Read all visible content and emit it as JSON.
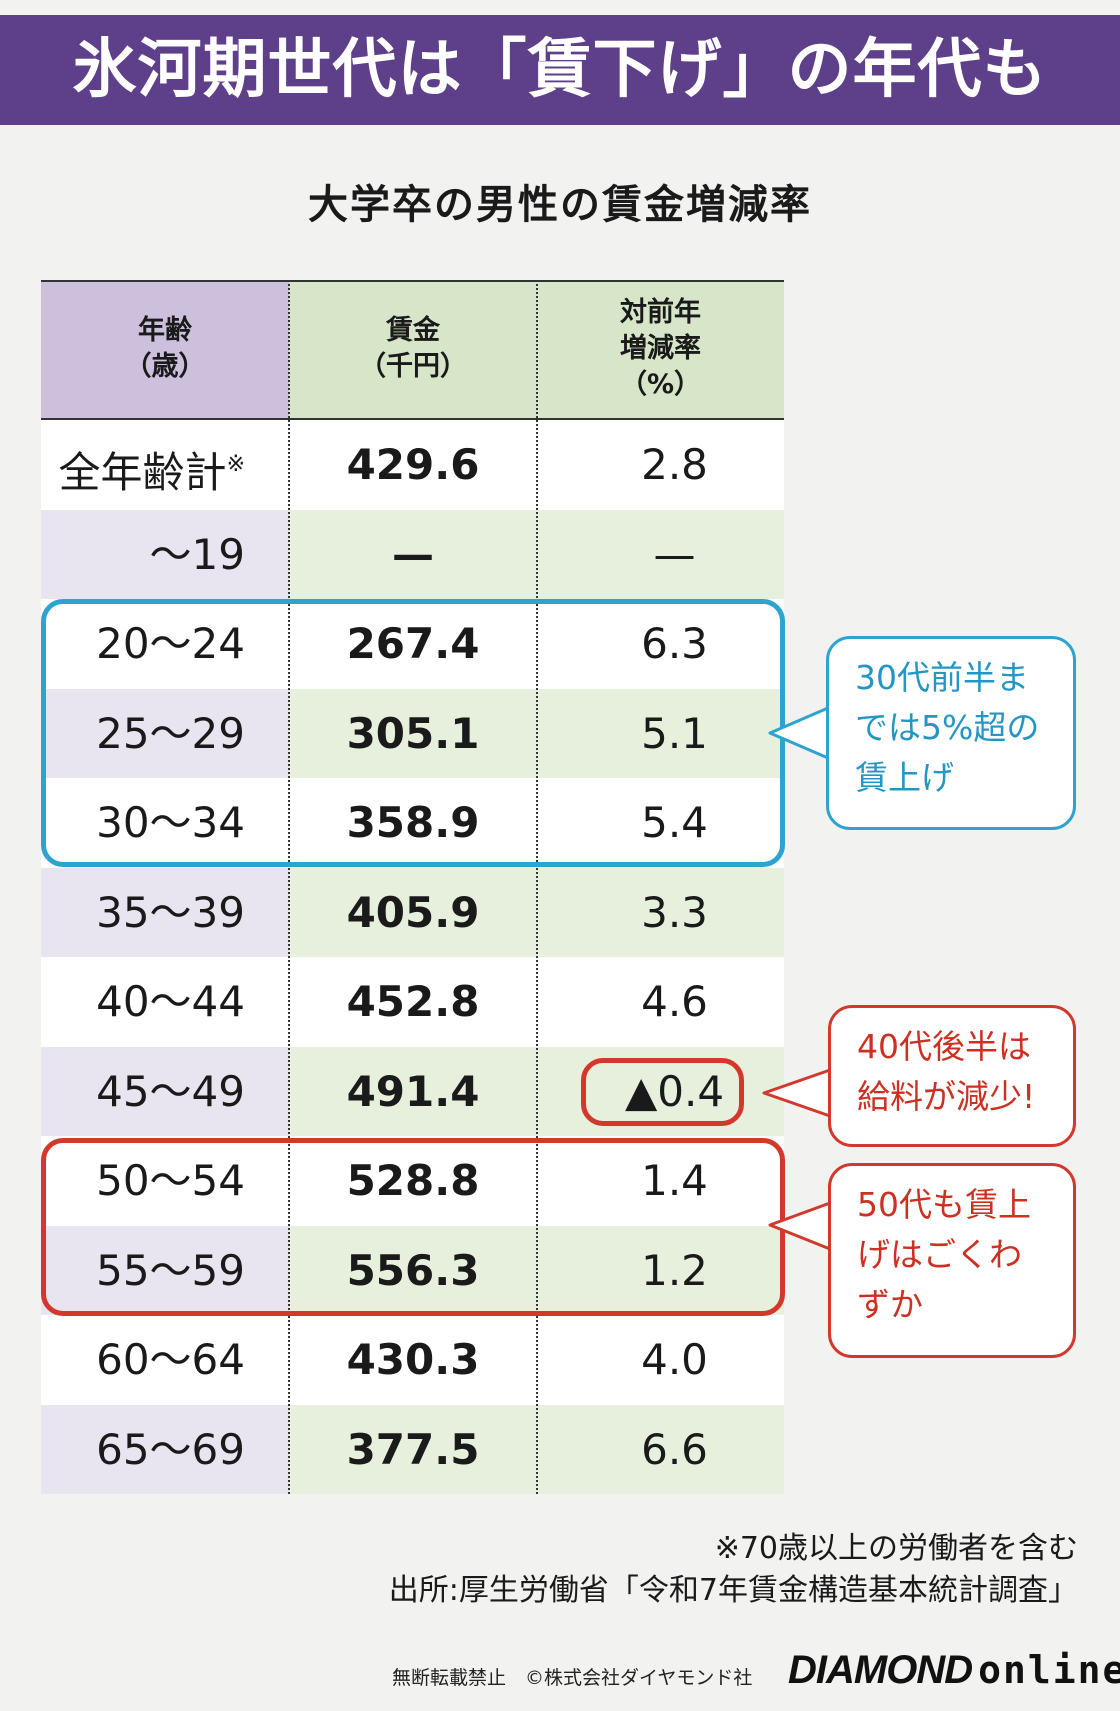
{
  "header": {
    "title": "氷河期世代は「賃下げ」の年代も",
    "accent_color": "#5e3f8a"
  },
  "subtitle": "大学卒の男性の賃金増減率",
  "table": {
    "columns": [
      "年齢\n（歳）",
      "賃金\n（千円）",
      "対前年\n増減率\n（%）"
    ],
    "rows": [
      {
        "age": "全年齢計",
        "age_note": "※",
        "wage": "429.6",
        "rate": "2.8"
      },
      {
        "age": "～19",
        "wage": "—",
        "rate": "—"
      },
      {
        "age": "20～24",
        "wage": "267.4",
        "rate": "6.3"
      },
      {
        "age": "25～29",
        "wage": "305.1",
        "rate": "5.1"
      },
      {
        "age": "30～34",
        "wage": "358.9",
        "rate": "5.4"
      },
      {
        "age": "35～39",
        "wage": "405.9",
        "rate": "3.3"
      },
      {
        "age": "40～44",
        "wage": "452.8",
        "rate": "4.6"
      },
      {
        "age": "45～49",
        "wage": "491.4",
        "rate": "▲0.4"
      },
      {
        "age": "50～54",
        "wage": "528.8",
        "rate": "1.4"
      },
      {
        "age": "55～59",
        "wage": "556.3",
        "rate": "1.2"
      },
      {
        "age": "60～64",
        "wage": "430.3",
        "rate": "4.0"
      },
      {
        "age": "65～69",
        "wage": "377.5",
        "rate": "6.6"
      }
    ]
  },
  "callouts": {
    "blue": "30代前半ま\nでは5%超の\n賃上げ",
    "red1": "40代後半は\n給料が減少!",
    "red2": "50代も賃上\nげはごくわ\nずか",
    "blue_color": "#2ea3d0",
    "red_color": "#d2392c"
  },
  "notes": {
    "note": "※70歳以上の労働者を含む",
    "source": "出所:厚生労働省「令和7年賃金構造基本統計調査」"
  },
  "footer": {
    "copyright": "無断転載禁止　©株式会社ダイヤモンド社",
    "logo_main": "DIAMOND",
    "logo_sub": "online"
  },
  "chart_data": {
    "type": "table",
    "title": "大学卒の男性の賃金増減率",
    "columns": [
      "年齢（歳）",
      "賃金（千円）",
      "対前年増減率（%）"
    ],
    "categories": [
      "全年齢計",
      "～19",
      "20～24",
      "25～29",
      "30～34",
      "35～39",
      "40～44",
      "45～49",
      "50～54",
      "55～59",
      "60～64",
      "65～69"
    ],
    "series": [
      {
        "name": "賃金（千円）",
        "values": [
          429.6,
          null,
          267.4,
          305.1,
          358.9,
          405.9,
          452.8,
          491.4,
          528.8,
          556.3,
          430.3,
          377.5
        ]
      },
      {
        "name": "対前年増減率（%）",
        "values": [
          2.8,
          null,
          6.3,
          5.1,
          5.4,
          3.3,
          4.6,
          -0.4,
          1.4,
          1.2,
          4.0,
          6.6
        ]
      }
    ]
  }
}
